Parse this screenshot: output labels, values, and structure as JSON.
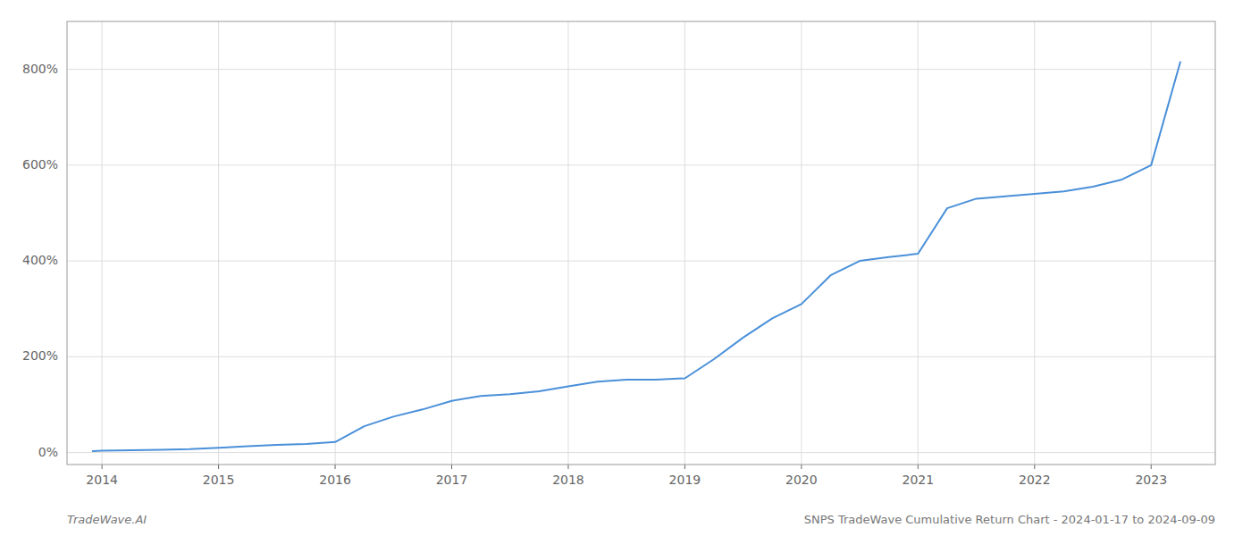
{
  "chart_data": {
    "type": "line",
    "title": "SNPS TradeWave Cumulative Return Chart - 2024-01-17 to 2024-09-09",
    "annotations": [
      "TradeWave.AI"
    ],
    "color": "#4a90d9",
    "grid": true,
    "x": [
      2013.92,
      2014.0,
      2014.25,
      2014.5,
      2014.75,
      2015.0,
      2015.25,
      2015.5,
      2015.75,
      2016.0,
      2016.25,
      2016.5,
      2016.75,
      2017.0,
      2017.25,
      2017.5,
      2017.75,
      2018.0,
      2018.25,
      2018.5,
      2018.75,
      2019.0,
      2019.25,
      2019.5,
      2019.75,
      2020.0,
      2020.25,
      2020.5,
      2020.75,
      2021.0,
      2021.25,
      2021.5,
      2021.75,
      2022.0,
      2022.25,
      2022.5,
      2022.75,
      2023.0,
      2023.25
    ],
    "values": [
      3,
      4,
      5,
      6,
      7,
      10,
      13,
      16,
      18,
      22,
      55,
      75,
      90,
      108,
      118,
      122,
      128,
      138,
      148,
      152,
      152,
      155,
      195,
      240,
      280,
      310,
      370,
      400,
      408,
      415,
      510,
      530,
      535,
      540,
      545,
      555,
      570,
      600,
      815
    ],
    "xlim": [
      2013.7,
      2023.55
    ],
    "xticks": [
      2014,
      2015,
      2016,
      2017,
      2018,
      2019,
      2020,
      2021,
      2022,
      2023
    ],
    "ylim": [
      -25,
      900
    ],
    "yticks": [
      {
        "value": 0,
        "label": "0%"
      },
      {
        "value": 200,
        "label": "200%"
      },
      {
        "value": 400,
        "label": "400%"
      },
      {
        "value": 600,
        "label": "600%"
      },
      {
        "value": 800,
        "label": "800%"
      }
    ]
  }
}
